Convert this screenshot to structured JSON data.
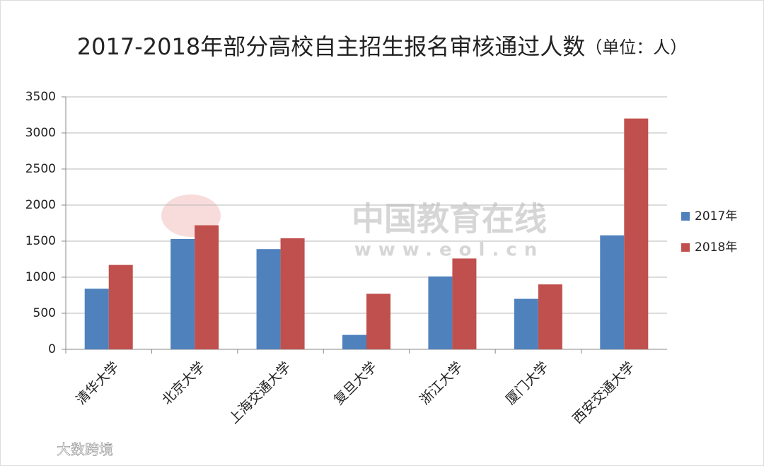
{
  "chart_data": {
    "type": "bar",
    "title": "2017-2018年部分高校自主招生报名审核通过人数",
    "title_unit": "（单位：人）",
    "categories": [
      "清华大学",
      "北京大学",
      "上海交通大学",
      "复旦大学",
      "浙江大学",
      "厦门大学",
      "西安交通大学"
    ],
    "series": [
      {
        "name": "2017年",
        "color": "#4f81bd",
        "values": [
          840,
          1530,
          1390,
          200,
          1010,
          700,
          1580
        ]
      },
      {
        "name": "2018年",
        "color": "#c0504d",
        "values": [
          1170,
          1720,
          1540,
          770,
          1260,
          900,
          3200
        ]
      }
    ],
    "ylim": [
      0,
      3500
    ],
    "yticks": [
      0,
      500,
      1000,
      1500,
      2000,
      2500,
      3000,
      3500
    ],
    "grid": true,
    "legend": "right",
    "watermarks": [
      "中国教育在线",
      "www.eol.cn",
      "大数跨境"
    ]
  }
}
